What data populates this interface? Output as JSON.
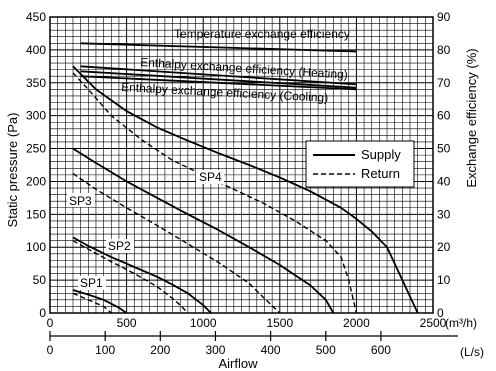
{
  "chart_data": {
    "type": "line",
    "ylabel_left": "Static pressure (Pa)",
    "ylabel_right": "Exchange efficiency (%)",
    "xlabel": "Airflow",
    "x_unit_top": "(m³/h)",
    "x_unit_bottom": "(L/s)",
    "x_top_ticks": [
      "0",
      "500",
      "1000",
      "1500",
      "2000",
      "2500"
    ],
    "x_top_range": [
      0,
      2500
    ],
    "x_bottom_ticks": [
      "0",
      "100",
      "200",
      "300",
      "400",
      "500",
      "600"
    ],
    "y_left_ticks": [
      "0",
      "50",
      "100",
      "150",
      "200",
      "250",
      "300",
      "350",
      "400",
      "450"
    ],
    "y_left_range": [
      0,
      450
    ],
    "y_right_ticks": [
      "0",
      "10",
      "20",
      "30",
      "40",
      "50",
      "60",
      "70",
      "80",
      "90"
    ],
    "y_right_range": [
      0,
      90
    ],
    "grid": true,
    "legend": {
      "position": "right-middle",
      "items": [
        {
          "label": "Supply",
          "style": "solid"
        },
        {
          "label": "Return",
          "style": "dashed"
        }
      ]
    },
    "pressure_curves": [
      {
        "label": "SP4",
        "style": "solid",
        "x": [
          150,
          300,
          500,
          700,
          900,
          1100,
          1300,
          1500,
          1700,
          1900,
          2000,
          2100,
          2200,
          2300,
          2400
        ],
        "y": [
          375,
          340,
          307,
          282,
          262,
          243,
          225,
          206,
          185,
          160,
          143,
          124,
          100,
          50,
          0
        ]
      },
      {
        "label": "SP4",
        "style": "dashed",
        "x": [
          150,
          250,
          400,
          600,
          800,
          1000,
          1200,
          1400,
          1600,
          1800,
          1900,
          1950,
          2000
        ],
        "y": [
          365,
          340,
          300,
          263,
          232,
          210,
          188,
          166,
          140,
          110,
          85,
          50,
          0
        ]
      },
      {
        "label": "SP3",
        "style": "solid",
        "x": [
          150,
          300,
          500,
          700,
          900,
          1100,
          1300,
          1500,
          1700,
          1800,
          1850
        ],
        "y": [
          250,
          228,
          200,
          175,
          150,
          126,
          100,
          73,
          42,
          20,
          0
        ]
      },
      {
        "label": "SP3",
        "style": "dashed",
        "x": [
          150,
          300,
          500,
          700,
          900,
          1100,
          1300,
          1400,
          1500
        ],
        "y": [
          212,
          188,
          160,
          133,
          105,
          77,
          45,
          22,
          0
        ]
      },
      {
        "label": "SP2",
        "style": "solid",
        "x": [
          150,
          250,
          400,
          550,
          700,
          800,
          900,
          1000,
          1050
        ],
        "y": [
          115,
          102,
          85,
          70,
          55,
          43,
          30,
          12,
          0
        ]
      },
      {
        "label": "SP2",
        "style": "dashed",
        "x": [
          150,
          250,
          400,
          550,
          700,
          800,
          850,
          900
        ],
        "y": [
          110,
          97,
          78,
          60,
          40,
          22,
          12,
          0
        ]
      },
      {
        "label": "SP1",
        "style": "solid",
        "x": [
          150,
          250,
          350,
          450,
          500
        ],
        "y": [
          35,
          28,
          20,
          8,
          0
        ]
      },
      {
        "label": "SP1",
        "style": "dashed",
        "x": [
          150,
          250,
          350,
          400
        ],
        "y": [
          30,
          20,
          10,
          0
        ]
      }
    ],
    "efficiency_curves": [
      {
        "label": "Temperature exchange efficiency",
        "x": [
          200,
          2000
        ],
        "y": [
          82,
          79.5
        ]
      },
      {
        "label": "Enthalpy exchange efficiency (Heating)",
        "x": [
          200,
          2000
        ],
        "y": [
          75,
          69.5
        ]
      },
      {
        "label": "Enthalpy exchange efficiency (Heating)",
        "x": [
          200,
          2000
        ],
        "y": [
          73.5,
          68.5
        ]
      },
      {
        "label": "Enthalpy exchange efficiency (Cooling)",
        "x": [
          200,
          2000
        ],
        "y": [
          72,
          68
        ]
      }
    ],
    "annotations": [
      {
        "text": "Temperature exchange efficiency"
      },
      {
        "text": "Enthalpy exchange efficiency (Heating)"
      },
      {
        "text": "Enthalpy exchange efficiency (Cooling)"
      },
      {
        "text": "SP4"
      },
      {
        "text": "SP3"
      },
      {
        "text": "SP2"
      },
      {
        "text": "SP1"
      }
    ]
  }
}
